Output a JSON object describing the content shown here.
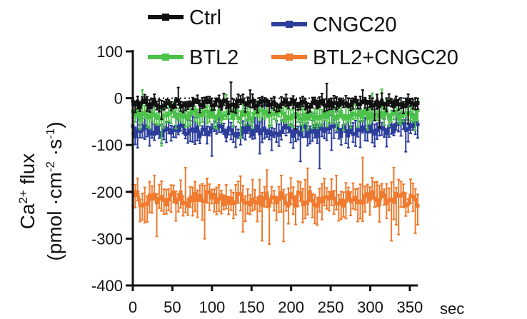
{
  "chart_data": {
    "type": "line",
    "title": "",
    "xlabel": "",
    "x_unit": "sec",
    "ylabel": {
      "line1": {
        "base": "Ca",
        "sup": "2+",
        "rest": " flux"
      },
      "line2": {
        "p1": "(pmol ·cm",
        "sup1": "-2",
        "p2": " ·s",
        "sup2": "-1",
        "p3": ")"
      }
    },
    "xlim": [
      0,
      360
    ],
    "ylim": [
      -400,
      100
    ],
    "xticks": [
      0,
      50,
      100,
      150,
      200,
      250,
      300,
      350
    ],
    "yticks": [
      100,
      0,
      -100,
      -200,
      -300,
      -400
    ],
    "reference_line_y": 0,
    "grid": false,
    "legend_placement": "top",
    "series": [
      {
        "name": "Ctrl",
        "color": "#111111",
        "mean": -12,
        "variation": 8,
        "error": 14,
        "error_max": 45
      },
      {
        "name": "BTL2",
        "color": "#4cc24a",
        "mean": -35,
        "variation": 10,
        "error": 22,
        "error_max": 40
      },
      {
        "name": "CNGC20",
        "color": "#2c3e9a",
        "mean": -70,
        "variation": 12,
        "error": 25,
        "error_max": 60,
        "end_mean": -50
      },
      {
        "name": "BTL2+CNGC20",
        "color": "#f07a2e",
        "mean": -215,
        "variation": 15,
        "error": 35,
        "error_max": 60
      }
    ]
  }
}
